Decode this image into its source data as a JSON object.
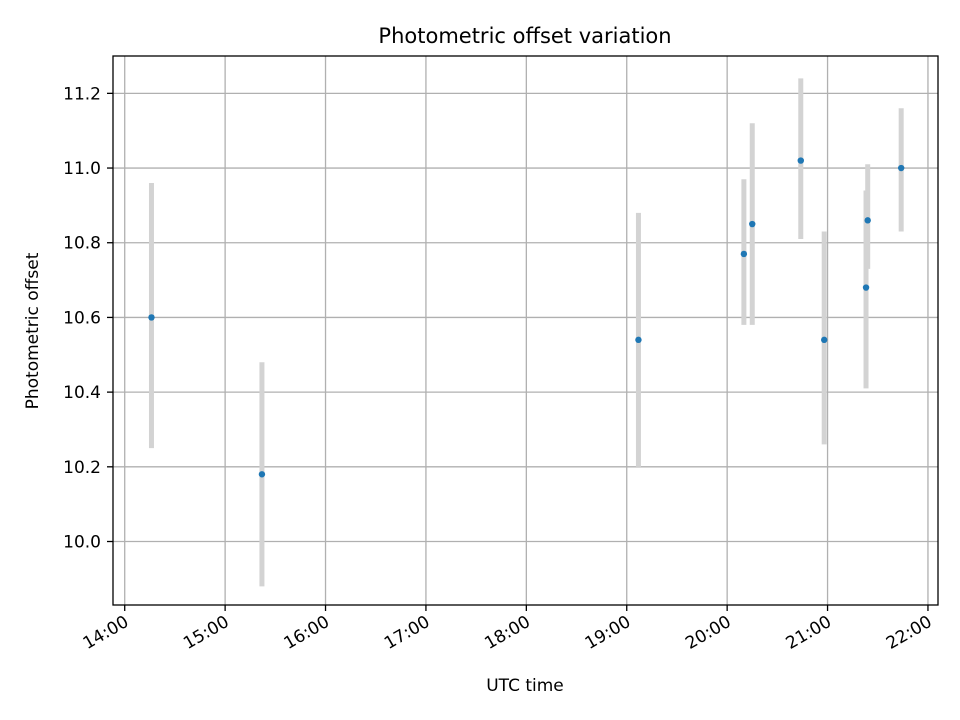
{
  "chart_data": {
    "type": "scatter",
    "title": "Photometric offset variation",
    "xlabel": "UTC time",
    "ylabel": "Photometric offset",
    "grid": true,
    "legend": "none",
    "xlim": [
      "13:53",
      "22:06"
    ],
    "ylim": [
      9.83,
      11.3
    ],
    "x_ticks": [
      "14:00",
      "15:00",
      "16:00",
      "17:00",
      "18:00",
      "19:00",
      "20:00",
      "21:00",
      "22:00"
    ],
    "y_ticks": [
      "10.0",
      "10.2",
      "10.4",
      "10.6",
      "10.8",
      "11.0",
      "11.2"
    ],
    "series": [
      {
        "marker_color": "#1f77b4",
        "errorbar_color": "#d3d3d3",
        "points": [
          {
            "time": "14:16",
            "value": 10.6,
            "low": 10.25,
            "high": 10.96
          },
          {
            "time": "15:22",
            "value": 10.18,
            "low": 9.88,
            "high": 10.48
          },
          {
            "time": "19:07",
            "value": 10.54,
            "low": 10.2,
            "high": 10.88
          },
          {
            "time": "20:10",
            "value": 10.77,
            "low": 10.58,
            "high": 10.97
          },
          {
            "time": "20:15",
            "value": 10.85,
            "low": 10.58,
            "high": 11.12
          },
          {
            "time": "20:44",
            "value": 11.02,
            "low": 10.81,
            "high": 11.24
          },
          {
            "time": "20:58",
            "value": 10.54,
            "low": 10.26,
            "high": 10.83
          },
          {
            "time": "21:23",
            "value": 10.68,
            "low": 10.41,
            "high": 10.94
          },
          {
            "time": "21:24",
            "value": 10.86,
            "low": 10.73,
            "high": 11.01
          },
          {
            "time": "21:44",
            "value": 11.0,
            "low": 10.83,
            "high": 11.16
          }
        ]
      }
    ]
  }
}
